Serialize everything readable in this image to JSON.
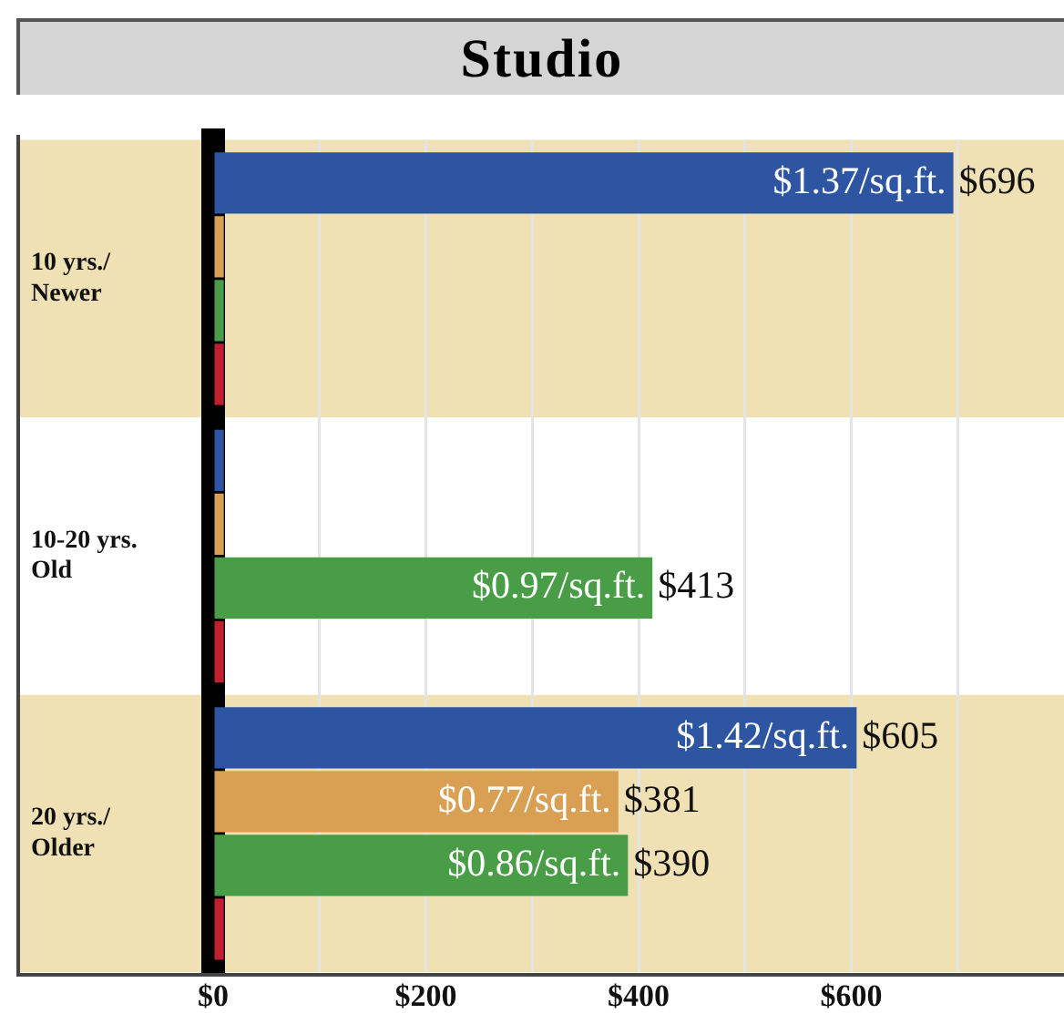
{
  "chart_data": {
    "type": "bar",
    "orientation": "horizontal",
    "title": "Studio",
    "categories": [
      "10 yrs./\nNewer",
      "10-20 yrs.\nOld",
      "20 yrs./\nOlder"
    ],
    "series": [
      {
        "color": "#2d55a1",
        "values": [
          696,
          10,
          605
        ],
        "value_labels": [
          "$696",
          null,
          "$605"
        ]
      },
      {
        "color": "#d99f52",
        "values": [
          10,
          10,
          381
        ],
        "value_labels": [
          null,
          null,
          "$381"
        ]
      },
      {
        "color": "#4a9d47",
        "values": [
          10,
          413,
          390
        ],
        "value_labels": [
          null,
          "$413",
          "$390"
        ]
      },
      {
        "color": "#c01f30",
        "values": [
          10,
          10,
          10
        ],
        "value_labels": [
          null,
          null,
          null
        ]
      }
    ],
    "xlim": [
      0,
      800
    ],
    "xticks": [
      {
        "value": 0,
        "label": "$0"
      },
      {
        "value": 100,
        "label": null
      },
      {
        "value": 200,
        "label": "$200"
      },
      {
        "value": 300,
        "label": null
      },
      {
        "value": 400,
        "label": "$400"
      },
      {
        "value": 500,
        "label": null
      },
      {
        "value": 600,
        "label": "$600"
      },
      {
        "value": 700,
        "label": null
      }
    ],
    "grid": "x",
    "legend": false,
    "bands": [
      {
        "axis": "y",
        "from": "10 yrs./\nNewer",
        "to": "10 yrs./\nNewer",
        "color": "#f0e1b5"
      },
      {
        "axis": "y",
        "from": "20 yrs./\nOlder",
        "to": "20 yrs./\nOlder",
        "color": "#f0e1b5"
      }
    ],
    "annotations": [
      "$1.37/sq.ft.",
      "$0.97/sq.ft.",
      "$1.42/sq.ft.",
      "$0.77/sq.ft.",
      "$0.86/sq.ft."
    ]
  }
}
